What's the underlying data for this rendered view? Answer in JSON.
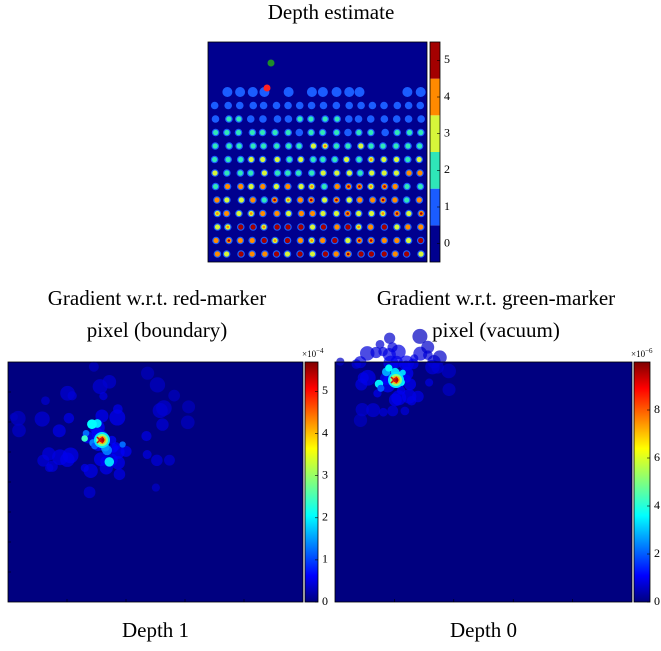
{
  "chart_data": [
    {
      "type": "heatmap",
      "title": [
        "Depth estimate"
      ],
      "colorbar": {
        "lim": [
          -0.5,
          5.5
        ],
        "ticks": [
          0,
          1,
          2,
          3,
          4,
          5
        ],
        "colors": [
          "#00008f",
          "#1a5cff",
          "#2fe6b8",
          "#d6f53a",
          "#ff8a00",
          "#a30000"
        ]
      }
    },
    {
      "type": "heatmap",
      "title": [
        "Gradient w.r.t. red-marker",
        "pixel (boundary)"
      ],
      "xlabel": "Depth 1",
      "colorbar": {
        "lim": [
          0,
          5.7
        ],
        "ticks": [
          0,
          1,
          2,
          3,
          4,
          5
        ],
        "colormap": "jet",
        "multiplier": {
          "base": "×10",
          "exponent": "−4"
        }
      }
    },
    {
      "type": "heatmap",
      "title": [
        "Gradient w.r.t. green-marker",
        "pixel (vacuum)"
      ],
      "xlabel": "Depth 0",
      "colorbar": {
        "lim": [
          0,
          10
        ],
        "ticks": [
          0,
          2,
          4,
          6,
          8
        ],
        "colormap": "jet",
        "multiplier": {
          "base": "×10",
          "exponent": "−6"
        }
      }
    }
  ]
}
